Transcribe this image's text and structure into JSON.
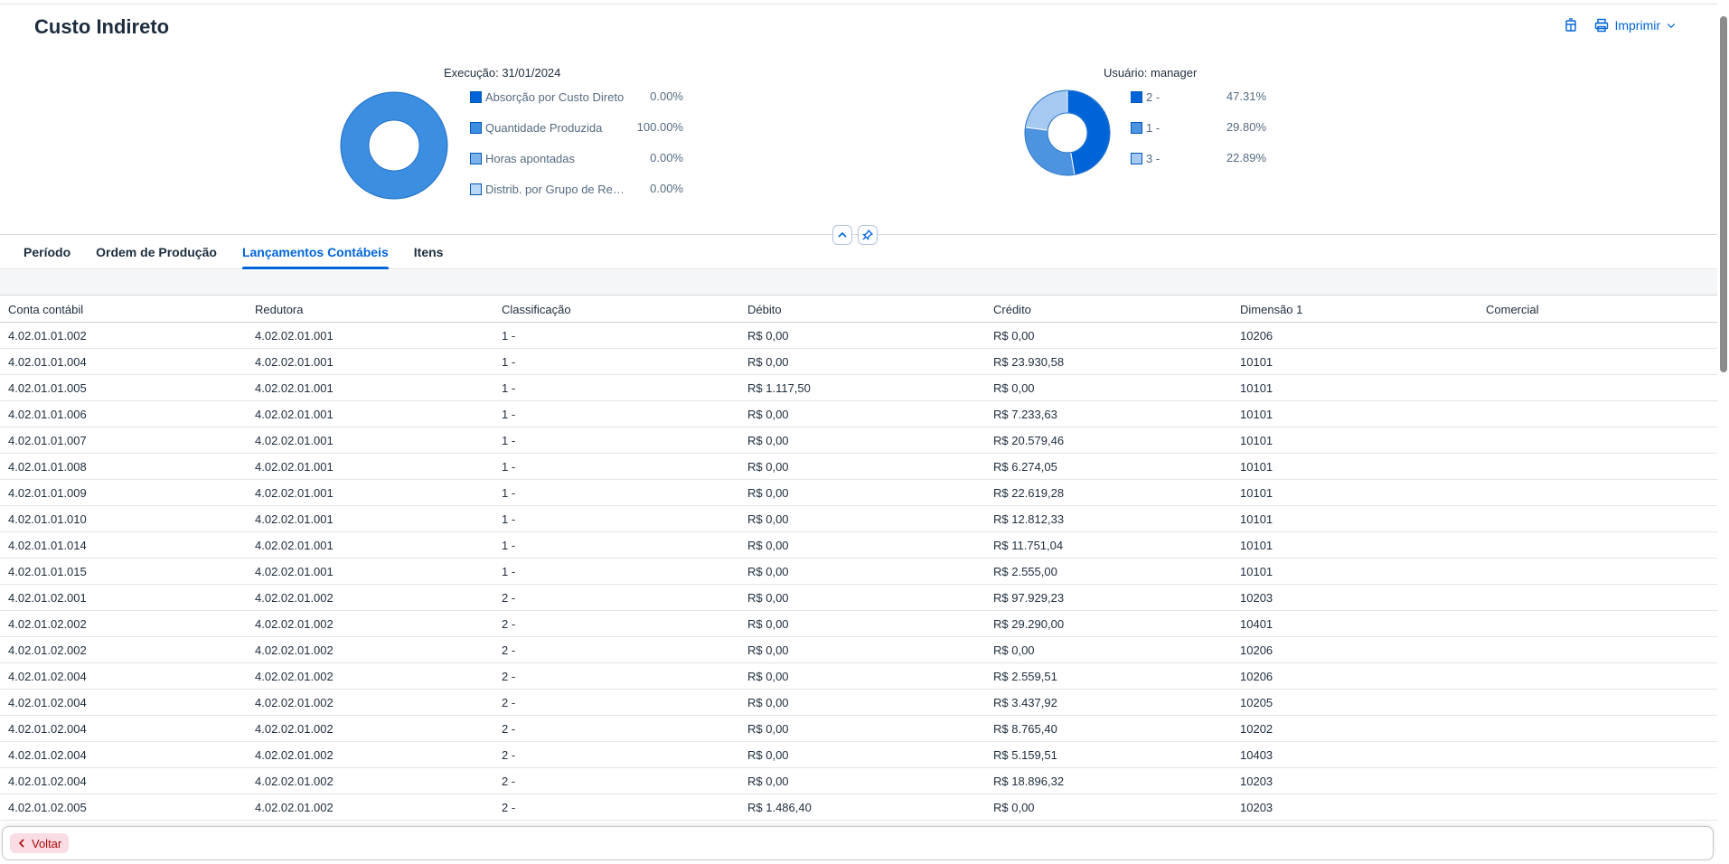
{
  "header": {
    "title": "Custo Indireto",
    "print_label": "Imprimir"
  },
  "chart_data": [
    {
      "type": "pie",
      "caption": "Execução: 31/01/2024",
      "categories": [
        "Absorção por Custo Direto",
        "Quantidade Produzida",
        "Horas apontadas",
        "Distrib. por Grupo de Recu..."
      ],
      "value_labels": [
        "0.00%",
        "100.00%",
        "0.00%",
        "0.00%"
      ],
      "values": [
        0,
        100,
        0,
        0
      ],
      "colors": [
        "#0064d9",
        "#3c8ee0",
        "#7db3eb",
        "#b9d6f5"
      ]
    },
    {
      "type": "pie",
      "caption": "Usuário: manager",
      "categories": [
        "2 -",
        "1 -",
        "3 -"
      ],
      "value_labels": [
        "47.31%",
        "29.80%",
        "22.89%"
      ],
      "values": [
        47.31,
        29.8,
        22.89
      ],
      "colors": [
        "#0064d9",
        "#4c93e0",
        "#a5c9f0"
      ]
    }
  ],
  "tabs": [
    {
      "label": "Período",
      "active": false
    },
    {
      "label": "Ordem de Produção",
      "active": false
    },
    {
      "label": "Lançamentos Contábeis",
      "active": true
    },
    {
      "label": "Itens",
      "active": false
    }
  ],
  "table": {
    "columns": [
      "Conta contábil",
      "Redutora",
      "Classificação",
      "Débito",
      "Crédito",
      "Dimensão 1",
      "Comercial"
    ],
    "rows": [
      [
        "4.02.01.01.002",
        "4.02.02.01.001",
        "1 -",
        "R$ 0,00",
        "R$ 0,00",
        "10206",
        ""
      ],
      [
        "4.02.01.01.004",
        "4.02.02.01.001",
        "1 -",
        "R$ 0,00",
        "R$ 23.930,58",
        "10101",
        ""
      ],
      [
        "4.02.01.01.005",
        "4.02.02.01.001",
        "1 -",
        "R$ 1.117,50",
        "R$ 0,00",
        "10101",
        ""
      ],
      [
        "4.02.01.01.006",
        "4.02.02.01.001",
        "1 -",
        "R$ 0,00",
        "R$ 7.233,63",
        "10101",
        ""
      ],
      [
        "4.02.01.01.007",
        "4.02.02.01.001",
        "1 -",
        "R$ 0,00",
        "R$ 20.579,46",
        "10101",
        ""
      ],
      [
        "4.02.01.01.008",
        "4.02.02.01.001",
        "1 -",
        "R$ 0,00",
        "R$ 6.274,05",
        "10101",
        ""
      ],
      [
        "4.02.01.01.009",
        "4.02.02.01.001",
        "1 -",
        "R$ 0,00",
        "R$ 22.619,28",
        "10101",
        ""
      ],
      [
        "4.02.01.01.010",
        "4.02.02.01.001",
        "1 -",
        "R$ 0,00",
        "R$ 12.812,33",
        "10101",
        ""
      ],
      [
        "4.02.01.01.014",
        "4.02.02.01.001",
        "1 -",
        "R$ 0,00",
        "R$ 11.751,04",
        "10101",
        ""
      ],
      [
        "4.02.01.01.015",
        "4.02.02.01.001",
        "1 -",
        "R$ 0,00",
        "R$ 2.555,00",
        "10101",
        ""
      ],
      [
        "4.02.01.02.001",
        "4.02.02.01.002",
        "2 -",
        "R$ 0,00",
        "R$ 97.929,23",
        "10203",
        ""
      ],
      [
        "4.02.01.02.002",
        "4.02.02.01.002",
        "2 -",
        "R$ 0,00",
        "R$ 29.290,00",
        "10401",
        ""
      ],
      [
        "4.02.01.02.002",
        "4.02.02.01.002",
        "2 -",
        "R$ 0,00",
        "R$ 0,00",
        "10206",
        ""
      ],
      [
        "4.02.01.02.004",
        "4.02.02.01.002",
        "2 -",
        "R$ 0,00",
        "R$ 2.559,51",
        "10206",
        ""
      ],
      [
        "4.02.01.02.004",
        "4.02.02.01.002",
        "2 -",
        "R$ 0,00",
        "R$ 3.437,92",
        "10205",
        ""
      ],
      [
        "4.02.01.02.004",
        "4.02.02.01.002",
        "2 -",
        "R$ 0,00",
        "R$ 8.765,40",
        "10202",
        ""
      ],
      [
        "4.02.01.02.004",
        "4.02.02.01.002",
        "2 -",
        "R$ 0,00",
        "R$ 5.159,51",
        "10403",
        ""
      ],
      [
        "4.02.01.02.004",
        "4.02.02.01.002",
        "2 -",
        "R$ 0,00",
        "R$ 18.896,32",
        "10203",
        ""
      ],
      [
        "4.02.01.02.005",
        "4.02.02.01.002",
        "2 -",
        "R$ 1.486,40",
        "R$ 0,00",
        "10203",
        ""
      ]
    ]
  },
  "footer": {
    "back_label": "Voltar"
  }
}
